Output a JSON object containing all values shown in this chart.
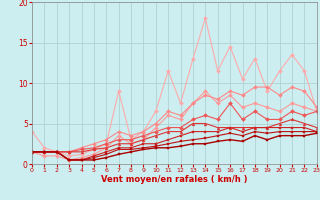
{
  "xlabel": "Vent moyen/en rafales ( km/h )",
  "xlim": [
    0,
    23
  ],
  "ylim": [
    0,
    20
  ],
  "yticks": [
    0,
    5,
    10,
    15,
    20
  ],
  "xticks": [
    0,
    1,
    2,
    3,
    4,
    5,
    6,
    7,
    8,
    9,
    10,
    11,
    12,
    13,
    14,
    15,
    16,
    17,
    18,
    19,
    20,
    21,
    22,
    23
  ],
  "background_color": "#cceef0",
  "grid_color": "#aacccc",
  "series": [
    {
      "x": [
        0,
        1,
        2,
        3,
        4,
        5,
        6,
        7,
        8,
        9,
        10,
        11,
        12,
        13,
        14,
        15,
        16,
        17,
        18,
        19,
        20,
        21,
        22,
        23
      ],
      "y": [
        4.0,
        2.0,
        1.5,
        1.0,
        1.2,
        1.8,
        2.5,
        9.0,
        3.0,
        4.0,
        6.5,
        11.5,
        7.5,
        13.0,
        18.0,
        11.5,
        14.5,
        10.5,
        13.0,
        9.0,
        11.5,
        13.5,
        11.5,
        6.5
      ],
      "color": "#ffaaaa",
      "lw": 0.8,
      "marker": "D",
      "ms": 2.0
    },
    {
      "x": [
        0,
        1,
        2,
        3,
        4,
        5,
        6,
        7,
        8,
        9,
        10,
        11,
        12,
        13,
        14,
        15,
        16,
        17,
        18,
        19,
        20,
        21,
        22,
        23
      ],
      "y": [
        1.5,
        1.0,
        1.0,
        0.5,
        0.8,
        1.2,
        2.0,
        3.5,
        2.5,
        3.0,
        4.5,
        6.0,
        5.5,
        7.5,
        9.0,
        7.5,
        8.5,
        7.0,
        7.5,
        7.0,
        6.5,
        7.5,
        7.0,
        6.5
      ],
      "color": "#ff9999",
      "lw": 0.8,
      "marker": "D",
      "ms": 2.0
    },
    {
      "x": [
        0,
        1,
        2,
        3,
        4,
        5,
        6,
        7,
        8,
        9,
        10,
        11,
        12,
        13,
        14,
        15,
        16,
        17,
        18,
        19,
        20,
        21,
        22,
        23
      ],
      "y": [
        1.5,
        1.5,
        1.5,
        1.5,
        2.0,
        2.5,
        3.0,
        4.0,
        3.5,
        4.0,
        5.0,
        6.5,
        6.0,
        7.5,
        8.5,
        8.0,
        9.0,
        8.5,
        9.5,
        9.5,
        8.5,
        9.5,
        9.0,
        7.0
      ],
      "color": "#ff8888",
      "lw": 0.8,
      "marker": "D",
      "ms": 2.0
    },
    {
      "x": [
        0,
        1,
        2,
        3,
        4,
        5,
        6,
        7,
        8,
        9,
        10,
        11,
        12,
        13,
        14,
        15,
        16,
        17,
        18,
        19,
        20,
        21,
        22,
        23
      ],
      "y": [
        1.5,
        1.5,
        1.5,
        1.5,
        1.8,
        2.0,
        2.5,
        3.0,
        3.0,
        3.5,
        4.0,
        4.5,
        4.5,
        5.5,
        6.0,
        5.5,
        7.5,
        5.5,
        6.5,
        5.5,
        5.5,
        6.5,
        6.0,
        6.5
      ],
      "color": "#ee5555",
      "lw": 0.8,
      "marker": "D",
      "ms": 2.0
    },
    {
      "x": [
        0,
        1,
        2,
        3,
        4,
        5,
        6,
        7,
        8,
        9,
        10,
        11,
        12,
        13,
        14,
        15,
        16,
        17,
        18,
        19,
        20,
        21,
        22,
        23
      ],
      "y": [
        1.5,
        1.5,
        1.5,
        1.5,
        1.5,
        1.8,
        2.0,
        2.5,
        2.5,
        3.0,
        3.5,
        4.0,
        4.0,
        5.0,
        5.0,
        4.5,
        4.5,
        4.5,
        4.5,
        4.5,
        5.0,
        5.5,
        5.0,
        4.5
      ],
      "color": "#dd3333",
      "lw": 0.8,
      "marker": "^",
      "ms": 2.0
    },
    {
      "x": [
        0,
        1,
        2,
        3,
        4,
        5,
        6,
        7,
        8,
        9,
        10,
        11,
        12,
        13,
        14,
        15,
        16,
        17,
        18,
        19,
        20,
        21,
        22,
        23
      ],
      "y": [
        1.5,
        1.5,
        1.5,
        0.5,
        0.5,
        1.0,
        1.5,
        2.0,
        2.0,
        2.5,
        2.5,
        3.0,
        3.5,
        4.0,
        4.0,
        4.0,
        4.5,
        4.0,
        4.5,
        4.5,
        4.5,
        4.5,
        4.5,
        4.0
      ],
      "color": "#cc2222",
      "lw": 0.8,
      "marker": "s",
      "ms": 2.0
    },
    {
      "x": [
        0,
        1,
        2,
        3,
        4,
        5,
        6,
        7,
        8,
        9,
        10,
        11,
        12,
        13,
        14,
        15,
        16,
        17,
        18,
        19,
        20,
        21,
        22,
        23
      ],
      "y": [
        1.5,
        1.5,
        1.5,
        0.5,
        0.5,
        0.8,
        1.2,
        1.8,
        1.8,
        2.0,
        2.2,
        2.5,
        2.8,
        3.0,
        3.2,
        3.5,
        3.8,
        3.5,
        4.0,
        3.8,
        4.0,
        4.0,
        4.0,
        4.0
      ],
      "color": "#bb1111",
      "lw": 0.8,
      "marker": "s",
      "ms": 2.0
    },
    {
      "x": [
        0,
        1,
        2,
        3,
        4,
        5,
        6,
        7,
        8,
        9,
        10,
        11,
        12,
        13,
        14,
        15,
        16,
        17,
        18,
        19,
        20,
        21,
        22,
        23
      ],
      "y": [
        1.5,
        1.5,
        1.5,
        0.5,
        0.5,
        0.5,
        0.8,
        1.2,
        1.5,
        1.8,
        2.0,
        2.0,
        2.2,
        2.5,
        2.5,
        2.8,
        3.0,
        2.8,
        3.5,
        3.0,
        3.5,
        3.5,
        3.5,
        3.8
      ],
      "color": "#aa0000",
      "lw": 1.0,
      "marker": "s",
      "ms": 2.0
    }
  ]
}
